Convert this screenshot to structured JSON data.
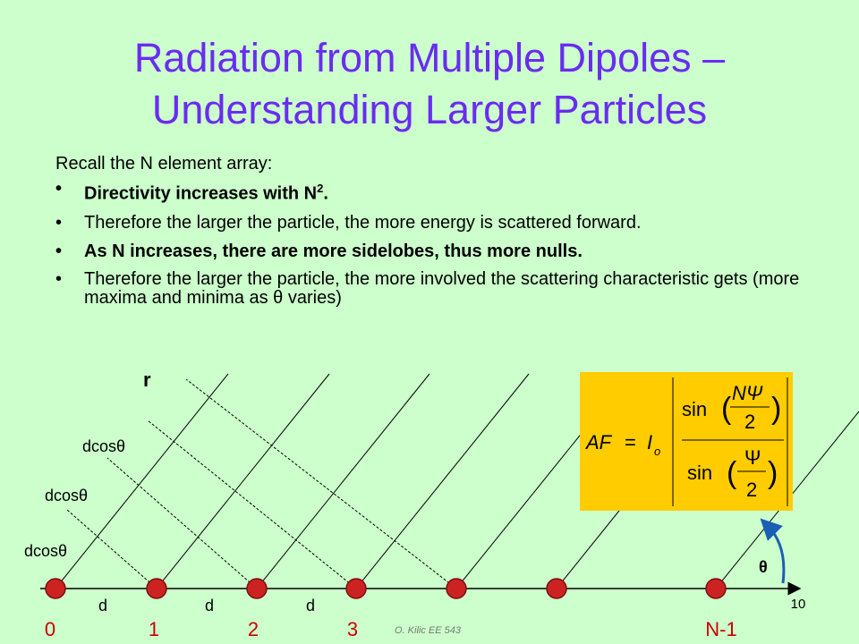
{
  "title": {
    "line1": "Radiation from Multiple Dipoles –",
    "line2": "Understanding Larger Particles"
  },
  "intro": "Recall the N element array:",
  "bullets": [
    {
      "text": "Directivity increases with N",
      "sup": "2",
      "tail": "."
    },
    {
      "text": "Therefore the larger the particle, the more energy is scattered forward."
    },
    {
      "text": "As N increases, there are more sidelobes, thus more nulls."
    },
    {
      "text": "Therefore the larger the particle, the more involved the scattering characteristic gets (more maxima and minima as θ varies)"
    }
  ],
  "diagram": {
    "r_label": "r",
    "path_labels": [
      "dcosθ",
      "dcosθ",
      "dcosθ"
    ],
    "spacing_labels": [
      "d",
      "d",
      "d"
    ],
    "element_labels": [
      "0",
      "1",
      "2",
      "3",
      "N-1"
    ],
    "angle_label": "θ",
    "formula": {
      "lhs": "AF",
      "eq": "=",
      "coef": "I",
      "coef_sub": "o",
      "func_top": "sin",
      "num_top": "NΨ",
      "den_top": "2",
      "func_bottom": "sin",
      "num_bottom": "Ψ",
      "den_bottom": "2"
    }
  },
  "footer": "O. Kilic  EE 543",
  "page_number": "10"
}
